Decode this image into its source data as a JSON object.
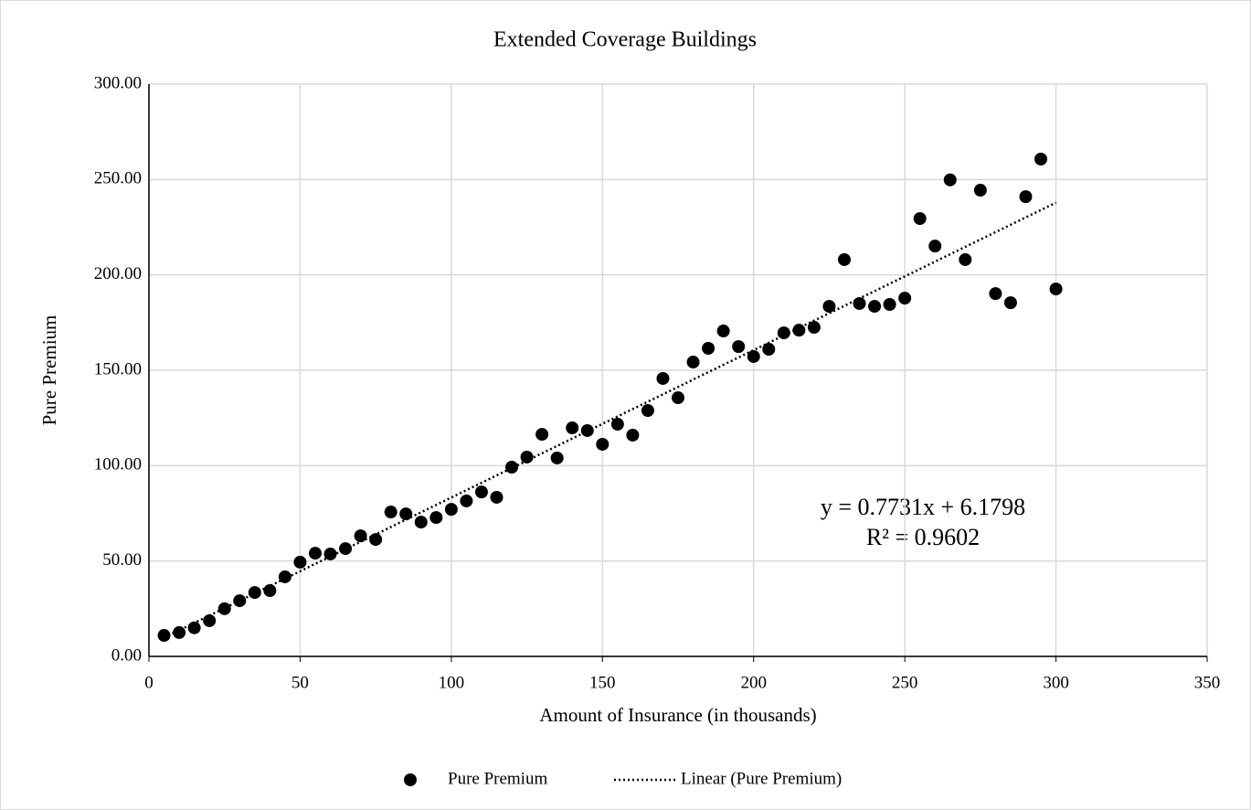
{
  "chart_data": {
    "type": "scatter",
    "title": "Extended Coverage Buildings",
    "x_label": "Amount of Insurance (in thousands)",
    "y_label": "Pure Premium",
    "series": [
      {
        "name": "Pure Premium",
        "color": "#000000",
        "x": [
          5,
          10,
          15,
          20,
          25,
          30,
          35,
          40,
          45,
          50,
          55,
          60,
          65,
          70,
          75,
          80,
          85,
          90,
          95,
          100,
          105,
          110,
          115,
          120,
          125,
          130,
          135,
          140,
          145,
          150,
          155,
          160,
          165,
          170,
          175,
          180,
          185,
          190,
          195,
          200,
          205,
          210,
          215,
          220,
          225,
          230,
          235,
          240,
          245,
          250,
          255,
          260,
          265,
          270,
          275,
          280,
          285,
          290,
          295,
          300
        ],
        "values": [
          11.0,
          12.5,
          15.0,
          18.7,
          25.0,
          29.2,
          33.5,
          34.5,
          41.7,
          49.4,
          54.1,
          53.7,
          56.5,
          63.2,
          61.3,
          75.7,
          74.7,
          70.4,
          72.8,
          77.1,
          81.5,
          86.2,
          83.4,
          99.2,
          104.5,
          116.4,
          104.0,
          119.8,
          118.4,
          111.2,
          121.7,
          116.0,
          128.9,
          145.7,
          135.6,
          154.3,
          161.5,
          170.6,
          162.4,
          157.2,
          161.0,
          169.6,
          171.0,
          172.5,
          183.5,
          208.0,
          185.0,
          183.5,
          184.5,
          187.8,
          229.5,
          215.1,
          249.8,
          208.0,
          244.4,
          190.2,
          185.4,
          241.0,
          260.7,
          192.6
        ]
      }
    ],
    "trendline": {
      "name": "Linear (Pure Premium)",
      "equation": "y = 0.7731x + 6.1798",
      "r_squared": "R² = 0.9602",
      "color": "#000000"
    },
    "xlim": [
      0,
      350
    ],
    "xticks": [
      0,
      50,
      100,
      150,
      200,
      250,
      300,
      350
    ],
    "ylim": [
      0,
      300
    ],
    "yticks": [
      {
        "value": 0,
        "label": "0.00"
      },
      {
        "value": 50,
        "label": "50.00"
      },
      {
        "value": 100,
        "label": "100.00"
      },
      {
        "value": 150,
        "label": "150.00"
      },
      {
        "value": 200,
        "label": "200.00"
      },
      {
        "value": 250,
        "label": "250.00"
      },
      {
        "value": 300,
        "label": "300.00"
      }
    ],
    "grid": true,
    "legend": "bottom"
  }
}
